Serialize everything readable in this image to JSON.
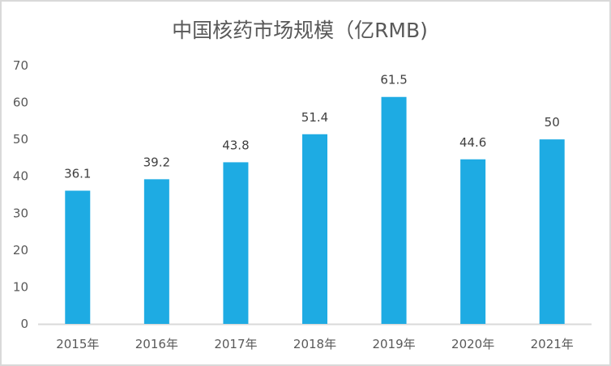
{
  "chart_data": {
    "type": "bar",
    "title": "中国核药市场规模（亿RMB)",
    "categories": [
      "2015年",
      "2016年",
      "2017年",
      "2018年",
      "2019年",
      "2020年",
      "2021年"
    ],
    "values": [
      36.1,
      39.2,
      43.8,
      51.4,
      61.5,
      44.6,
      50
    ],
    "data_labels": [
      "36.1",
      "39.2",
      "43.8",
      "51.4",
      "61.5",
      "44.6",
      "50"
    ],
    "y_ticks": [
      "0",
      "10",
      "20",
      "30",
      "40",
      "50",
      "60",
      "70"
    ],
    "xlabel": "",
    "ylabel": "",
    "ylim": [
      0,
      70
    ],
    "grid": false,
    "legend": "none",
    "bar_color": "#1eabe3"
  }
}
